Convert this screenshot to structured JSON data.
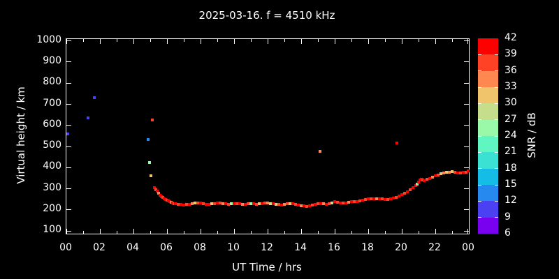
{
  "title": "2025-03-16. f = 4510 kHz",
  "axes": {
    "y_label": "Virtual height / km",
    "x_label": "UT Time / hrs",
    "y_ticks": [
      1000,
      900,
      800,
      700,
      600,
      500,
      400,
      300,
      200,
      100
    ],
    "x_tick_labels": [
      "00",
      "02",
      "04",
      "06",
      "08",
      "10",
      "12",
      "14",
      "16",
      "18",
      "20",
      "22",
      "00"
    ],
    "x_tick_hours": [
      0,
      2,
      4,
      6,
      8,
      10,
      12,
      14,
      16,
      18,
      20,
      22,
      24
    ]
  },
  "colorbar": {
    "label": "SNR / dB",
    "tick_labels": [
      42,
      39,
      36,
      33,
      30,
      27,
      24,
      21,
      18,
      15,
      12,
      9,
      6
    ],
    "range_db": [
      6,
      42
    ],
    "step_db": 3,
    "colors_low_to_high": [
      "#7A00F0",
      "#4B40F2",
      "#2589F0",
      "#14BCE6",
      "#3BE2D3",
      "#60F6C2",
      "#99F9A9",
      "#C6DE8C",
      "#EFC46A",
      "#FF8850",
      "#FF4125",
      "#FF0000"
    ]
  },
  "colors": {
    "background": "#000000",
    "foreground": "#ffffff"
  },
  "chart_data": {
    "type": "scatter",
    "title": "2025-03-16. f = 4510 kHz",
    "xlabel": "UT Time / hrs",
    "ylabel": "Virtual height / km",
    "xlim": [
      0,
      24
    ],
    "ylim": [
      100,
      1000
    ],
    "grid": false,
    "legend": "colorbar right, SNR / dB, 6-42 in steps of 3",
    "points_format": [
      "hour_ut",
      "virtual_height_km",
      "snr_db"
    ],
    "trace": [
      [
        5.25,
        307,
        40
      ],
      [
        5.33,
        296,
        37
      ],
      [
        5.42,
        288,
        40
      ],
      [
        5.5,
        278,
        34
      ],
      [
        5.58,
        270,
        40
      ],
      [
        5.67,
        263,
        40
      ],
      [
        5.75,
        258,
        37
      ],
      [
        5.83,
        253,
        40
      ],
      [
        5.92,
        249,
        40
      ],
      [
        6.0,
        245,
        37
      ],
      [
        6.08,
        242,
        40
      ],
      [
        6.17,
        239,
        40
      ],
      [
        6.25,
        236,
        34
      ],
      [
        6.33,
        232,
        40
      ],
      [
        6.42,
        230,
        37
      ],
      [
        6.5,
        229,
        40
      ],
      [
        6.67,
        227,
        37
      ],
      [
        6.83,
        225,
        40
      ],
      [
        7.0,
        224,
        40
      ],
      [
        7.17,
        225,
        37
      ],
      [
        7.33,
        227,
        40
      ],
      [
        7.5,
        230,
        34
      ],
      [
        7.67,
        233,
        31
      ],
      [
        7.83,
        234,
        37
      ],
      [
        8.0,
        232,
        40
      ],
      [
        8.17,
        229,
        37
      ],
      [
        8.33,
        227,
        40
      ],
      [
        8.5,
        226,
        40
      ],
      [
        8.67,
        228,
        31
      ],
      [
        8.83,
        230,
        37
      ],
      [
        9.0,
        232,
        40
      ],
      [
        9.17,
        233,
        37
      ],
      [
        9.33,
        231,
        34
      ],
      [
        9.5,
        229,
        40
      ],
      [
        9.67,
        227,
        37
      ],
      [
        9.83,
        228,
        25
      ],
      [
        10.0,
        230,
        40
      ],
      [
        10.17,
        231,
        37
      ],
      [
        10.33,
        229,
        40
      ],
      [
        10.5,
        227,
        34
      ],
      [
        10.67,
        226,
        40
      ],
      [
        10.83,
        228,
        37
      ],
      [
        11.0,
        230,
        25
      ],
      [
        11.17,
        229,
        40
      ],
      [
        11.33,
        227,
        37
      ],
      [
        11.5,
        228,
        31
      ],
      [
        11.67,
        230,
        40
      ],
      [
        11.83,
        232,
        37
      ],
      [
        12.0,
        233,
        34
      ],
      [
        12.17,
        231,
        28
      ],
      [
        12.33,
        229,
        40
      ],
      [
        12.5,
        227,
        31
      ],
      [
        12.67,
        225,
        37
      ],
      [
        12.83,
        224,
        40
      ],
      [
        13.0,
        226,
        34
      ],
      [
        13.17,
        229,
        37
      ],
      [
        13.33,
        231,
        31
      ],
      [
        13.5,
        228,
        40
      ],
      [
        13.67,
        225,
        37
      ],
      [
        13.83,
        222,
        40
      ],
      [
        14.0,
        220,
        34
      ],
      [
        14.17,
        218,
        40
      ],
      [
        14.33,
        217,
        37
      ],
      [
        14.5,
        219,
        40
      ],
      [
        14.67,
        222,
        37
      ],
      [
        14.83,
        226,
        40
      ],
      [
        15.0,
        229,
        37
      ],
      [
        15.17,
        231,
        40
      ],
      [
        15.33,
        229,
        34
      ],
      [
        15.5,
        227,
        40
      ],
      [
        15.67,
        229,
        37
      ],
      [
        15.83,
        234,
        28
      ],
      [
        16.0,
        238,
        40
      ],
      [
        16.17,
        236,
        37
      ],
      [
        16.33,
        233,
        40
      ],
      [
        16.5,
        233,
        37
      ],
      [
        16.67,
        234,
        40
      ],
      [
        16.83,
        236,
        34
      ],
      [
        17.0,
        238,
        40
      ],
      [
        17.17,
        240,
        37
      ],
      [
        17.33,
        241,
        40
      ],
      [
        17.5,
        242,
        37
      ],
      [
        17.67,
        245,
        40
      ],
      [
        17.83,
        248,
        37
      ],
      [
        18.0,
        251,
        40
      ],
      [
        18.17,
        253,
        37
      ],
      [
        18.33,
        254,
        40
      ],
      [
        18.5,
        254,
        34
      ],
      [
        18.67,
        253,
        40
      ],
      [
        18.83,
        251,
        37
      ],
      [
        19.0,
        250,
        40
      ],
      [
        19.17,
        250,
        37
      ],
      [
        19.33,
        252,
        40
      ],
      [
        19.5,
        255,
        40
      ],
      [
        19.67,
        260,
        37
      ],
      [
        19.83,
        266,
        40
      ],
      [
        20.0,
        272,
        40
      ],
      [
        20.17,
        279,
        37
      ],
      [
        20.33,
        287,
        40
      ],
      [
        20.5,
        295,
        37
      ],
      [
        20.67,
        305,
        40
      ],
      [
        20.83,
        315,
        40
      ],
      [
        20.92,
        323,
        25
      ],
      [
        21.0,
        333,
        40
      ],
      [
        21.08,
        341,
        40
      ],
      [
        21.17,
        346,
        40
      ],
      [
        21.25,
        343,
        37
      ],
      [
        21.33,
        340,
        40
      ],
      [
        21.5,
        344,
        37
      ],
      [
        21.67,
        350,
        40
      ],
      [
        21.83,
        356,
        34
      ],
      [
        22.0,
        361,
        40
      ],
      [
        22.17,
        366,
        37
      ],
      [
        22.33,
        370,
        31
      ],
      [
        22.5,
        374,
        34
      ],
      [
        22.67,
        377,
        31
      ],
      [
        22.83,
        379,
        34
      ],
      [
        23.0,
        380,
        31
      ],
      [
        23.17,
        378,
        37
      ],
      [
        23.33,
        376,
        40
      ],
      [
        23.5,
        375,
        37
      ],
      [
        23.67,
        377,
        40
      ],
      [
        23.83,
        379,
        37
      ],
      [
        23.96,
        384,
        40
      ]
    ],
    "isolated_points": [
      [
        0.08,
        559,
        10
      ],
      [
        1.29,
        637,
        10
      ],
      [
        1.65,
        733,
        10
      ],
      [
        4.88,
        533,
        13
      ],
      [
        4.96,
        425,
        25
      ],
      [
        5.04,
        363,
        31
      ],
      [
        5.13,
        627,
        37
      ],
      [
        15.11,
        477,
        34
      ],
      [
        19.7,
        516,
        40
      ]
    ]
  }
}
